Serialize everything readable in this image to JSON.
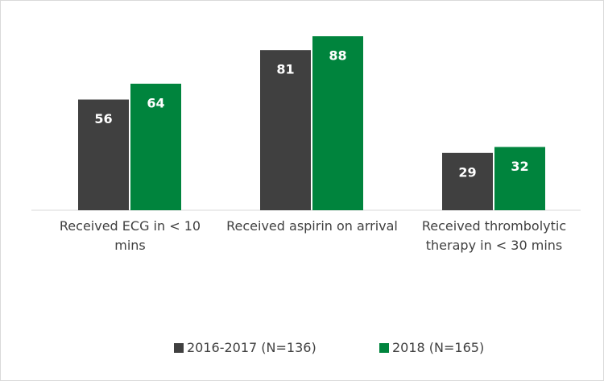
{
  "chart_data": {
    "type": "bar",
    "categories": [
      "Received ECG in < 10 mins",
      "Received aspirin on arrival",
      "Received thrombolytic therapy in < 30 mins"
    ],
    "series": [
      {
        "name": "2016-2017 (N=136)",
        "color": "#404040",
        "values": [
          56,
          81,
          29
        ]
      },
      {
        "name": "2018 (N=165)",
        "color": "#00843d",
        "values": [
          64,
          88,
          32
        ]
      }
    ],
    "legend": "bottom"
  }
}
